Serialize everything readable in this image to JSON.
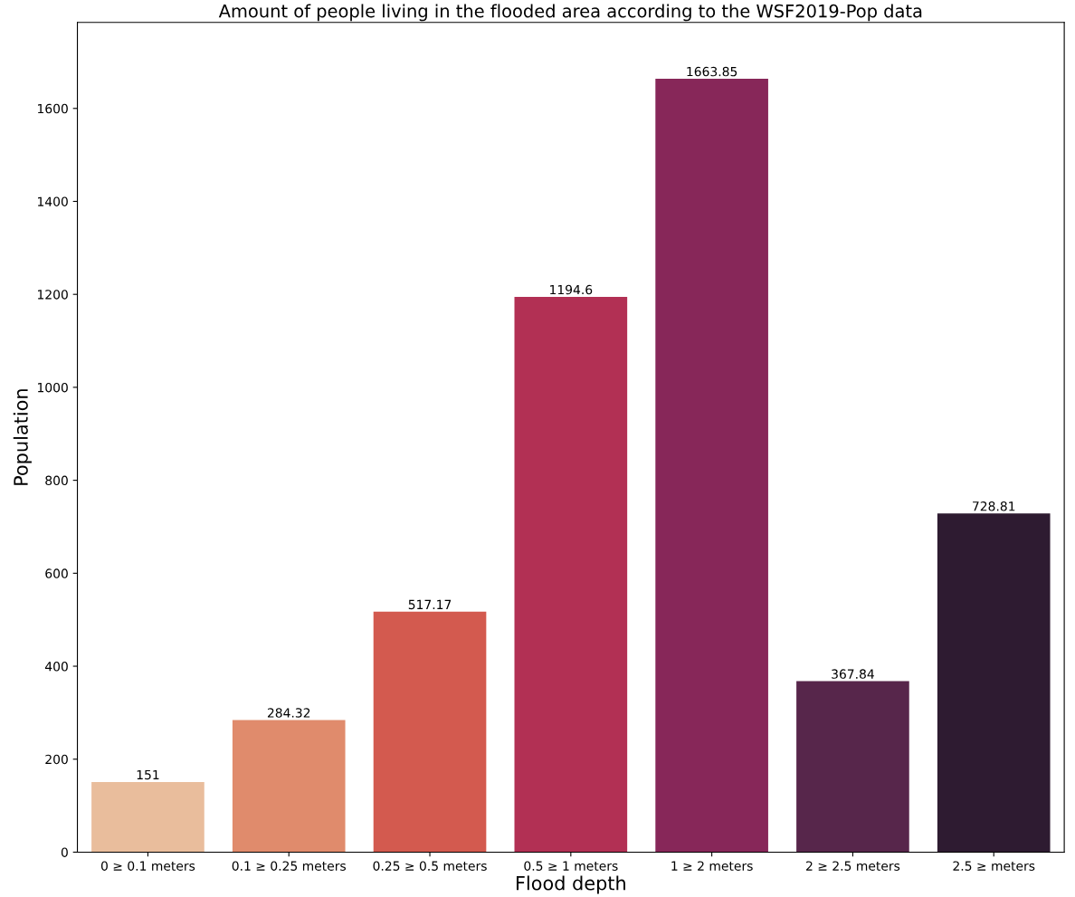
{
  "chart_data": {
    "type": "bar",
    "title": "Amount of people living in the flooded area according to the WSF2019-Pop data",
    "xlabel": "Flood depth",
    "ylabel": "Population",
    "categories": [
      "0 ≥ 0.1 meters",
      "0.1 ≥ 0.25 meters",
      "0.25 ≥ 0.5 meters",
      "0.5 ≥ 1 meters",
      "1 ≥ 2 meters",
      "2 ≥ 2.5 meters",
      "2.5 ≥ meters"
    ],
    "values": [
      151,
      284.32,
      517.17,
      1194.6,
      1663.85,
      367.84,
      728.81
    ],
    "colors": [
      "#e9bd9c",
      "#e08b6c",
      "#d35a4f",
      "#b23054",
      "#872759",
      "#57264b",
      "#2e1b31"
    ],
    "value_labels": [
      "151",
      "284.32",
      "517.17",
      "1194.6",
      "1663.85",
      "367.84",
      "728.81"
    ],
    "ylim": [
      0,
      1785
    ],
    "yticks": [
      0,
      200,
      400,
      600,
      800,
      1000,
      1200,
      1400,
      1600
    ],
    "grid": false,
    "legend": false
  }
}
